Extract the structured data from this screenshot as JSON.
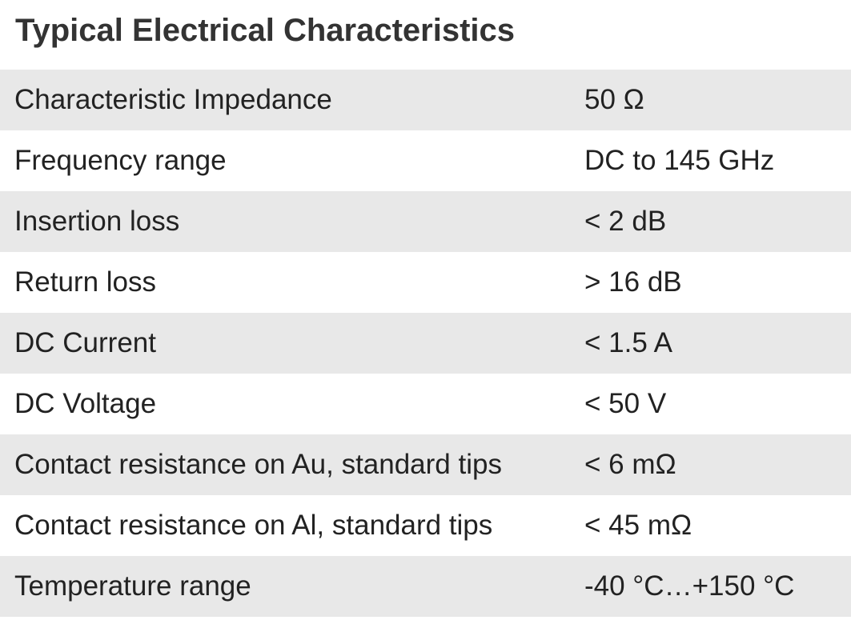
{
  "title": "Typical Electrical Characteristics",
  "rows": [
    {
      "parameter": "Characteristic Impedance",
      "value": "50 Ω"
    },
    {
      "parameter": "Frequency range",
      "value": "DC to 145 GHz"
    },
    {
      "parameter": "Insertion loss",
      "value": "< 2 dB"
    },
    {
      "parameter": "Return loss",
      "value": "> 16 dB"
    },
    {
      "parameter": "DC Current",
      "value": "< 1.5 A"
    },
    {
      "parameter": "DC Voltage",
      "value": "< 50 V"
    },
    {
      "parameter": "Contact resistance on Au, standard tips",
      "value": "< 6 mΩ"
    },
    {
      "parameter": "Contact resistance on Al, standard tips",
      "value": "< 45 mΩ"
    },
    {
      "parameter": "Temperature range",
      "value": "-40 °C…+150 °C"
    }
  ]
}
